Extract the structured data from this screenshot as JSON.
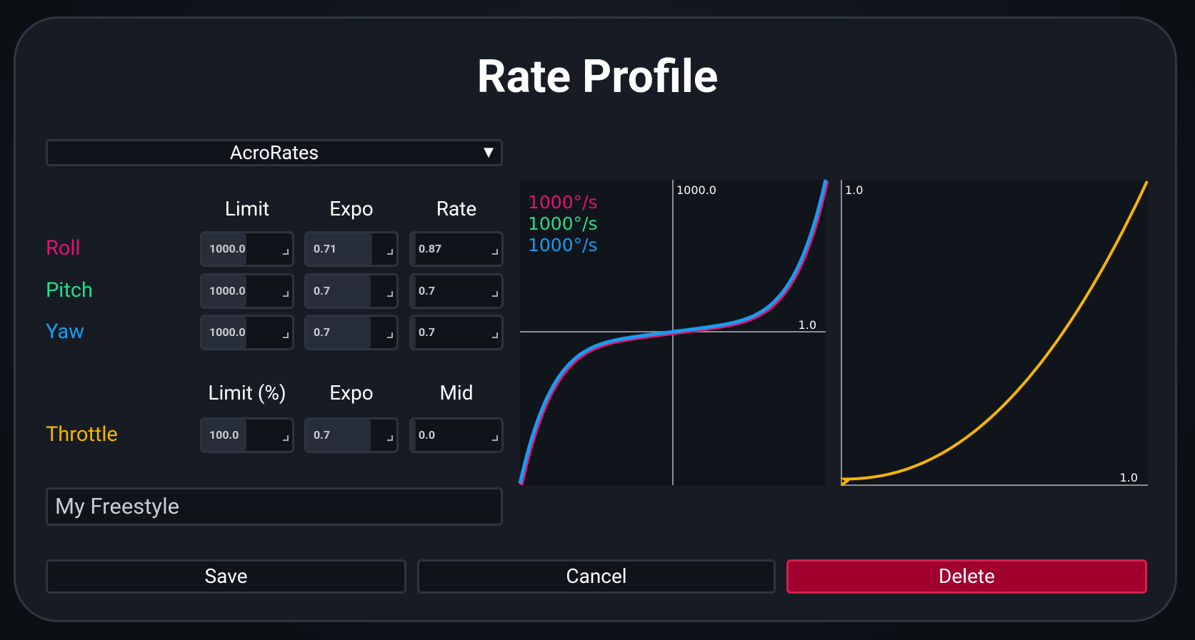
{
  "title": "Rate Profile",
  "profile_type": "AcroRates",
  "rates": {
    "headers": [
      "Limit",
      "Expo",
      "Rate"
    ],
    "rows": [
      {
        "label": "Roll",
        "values": [
          "1000.0",
          "0.71",
          "0.87"
        ]
      },
      {
        "label": "Pitch",
        "values": [
          "1000.0",
          "0.7",
          "0.7"
        ]
      },
      {
        "label": "Yaw",
        "values": [
          "1000.0",
          "0.7",
          "0.7"
        ]
      }
    ]
  },
  "throttle": {
    "headers": [
      "Limit (%)",
      "Expo",
      "Mid"
    ],
    "label": "Throttle",
    "values": [
      "100.0",
      "0.7",
      "0.0"
    ]
  },
  "profile_name": "My Freestyle",
  "buttons": [
    "Save",
    "Cancel",
    "Delete"
  ],
  "rate_graph": {
    "y_max_label": "1000.0",
    "x_max_label": "1.0",
    "legend": [
      "1000°/s",
      "1000°/s",
      "1000°/s"
    ]
  },
  "throttle_graph": {
    "y_max_label": "1.0",
    "x_max_label": "1.0"
  }
}
